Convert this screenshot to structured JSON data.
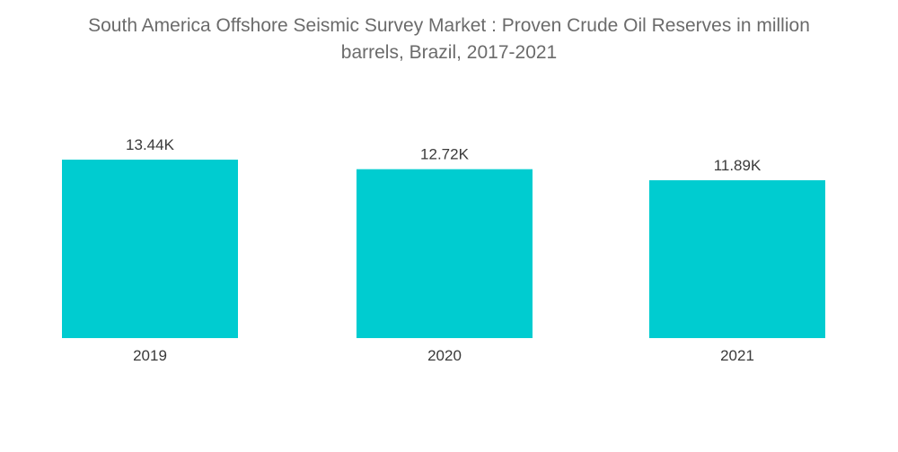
{
  "chart_data": {
    "type": "bar",
    "title_line1": "South America Offshore Seismic Survey Market : Proven Crude Oil Reserves in million",
    "title_line2": "barrels, Brazil, 2017-2021",
    "categories": [
      "2019",
      "2020",
      "2021"
    ],
    "values": [
      13440,
      12720,
      11890
    ],
    "data_labels": [
      "13.44K",
      "12.72K",
      "11.89K"
    ],
    "xlabel": "",
    "ylabel": "",
    "ylim": [
      0,
      13440
    ],
    "grid": false,
    "legend": "none",
    "bar_color": "#00ccd0"
  }
}
